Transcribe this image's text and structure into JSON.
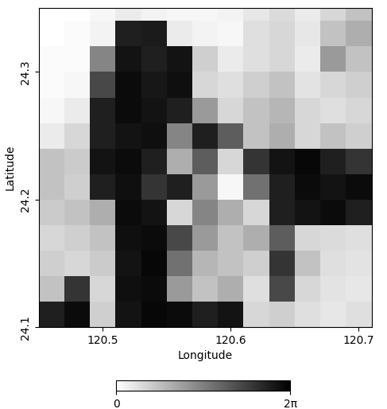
{
  "chart_data": {
    "type": "heatmap",
    "xlabel": "Longitude",
    "ylabel": "Latitude",
    "xlim": [
      120.45,
      120.71
    ],
    "ylim": [
      24.1,
      24.35
    ],
    "xticks": [
      120.5,
      120.6,
      120.7
    ],
    "yticks": [
      24.1,
      24.2,
      24.3
    ],
    "x": [
      120.45,
      120.47,
      120.49,
      120.51,
      120.53,
      120.55,
      120.57,
      120.59,
      120.61,
      120.63,
      120.65,
      120.67,
      120.69,
      120.71
    ],
    "y": [
      24.1,
      24.12,
      24.14,
      24.16,
      24.18,
      24.2,
      24.22,
      24.24,
      24.26,
      24.28,
      24.3,
      24.32,
      24.34,
      24.36
    ],
    "z": [
      [
        5.5,
        6.0,
        1.2,
        5.8,
        6.1,
        6.0,
        5.5,
        5.8,
        1.0,
        1.2,
        0.8,
        0.6,
        0.8
      ],
      [
        1.5,
        5.0,
        1.0,
        5.9,
        6.0,
        2.5,
        1.5,
        2.0,
        0.8,
        4.5,
        1.0,
        0.7,
        0.6
      ],
      [
        1.2,
        1.0,
        1.3,
        5.8,
        6.1,
        3.5,
        1.8,
        1.5,
        1.2,
        5.0,
        1.5,
        0.8,
        0.7
      ],
      [
        1.0,
        1.2,
        1.5,
        5.9,
        6.0,
        4.5,
        2.5,
        1.5,
        2.0,
        4.0,
        1.0,
        0.9,
        0.8
      ],
      [
        1.3,
        1.5,
        2.0,
        6.0,
        5.8,
        1.0,
        3.0,
        2.0,
        1.0,
        5.5,
        5.8,
        6.0,
        5.5
      ],
      [
        1.5,
        1.2,
        5.5,
        5.9,
        5.0,
        5.5,
        2.5,
        0.2,
        3.5,
        5.5,
        6.0,
        5.8,
        6.0
      ],
      [
        1.5,
        1.3,
        5.8,
        6.0,
        5.5,
        2.0,
        4.0,
        1.0,
        5.0,
        5.8,
        6.1,
        5.5,
        5.0
      ],
      [
        0.5,
        1.0,
        5.5,
        5.8,
        5.9,
        3.0,
        5.5,
        4.0,
        1.5,
        2.0,
        1.0,
        1.5,
        1.2
      ],
      [
        0.2,
        0.5,
        5.5,
        6.0,
        5.8,
        5.5,
        2.5,
        1.0,
        1.5,
        1.8,
        1.0,
        0.8,
        1.0
      ],
      [
        0.1,
        0.2,
        4.5,
        6.0,
        5.7,
        5.9,
        1.0,
        0.8,
        1.2,
        1.5,
        0.7,
        1.0,
        1.2
      ],
      [
        0.1,
        0.1,
        3.0,
        5.8,
        5.5,
        5.8,
        1.2,
        0.5,
        0.8,
        1.0,
        0.5,
        2.5,
        1.5
      ],
      [
        0.0,
        0.1,
        0.3,
        5.5,
        5.6,
        0.5,
        0.3,
        0.2,
        0.8,
        1.0,
        0.6,
        1.5,
        2.0
      ],
      [
        0.0,
        0.0,
        0.2,
        0.5,
        0.3,
        0.2,
        0.2,
        0.3,
        0.6,
        0.9,
        0.5,
        1.0,
        1.5
      ]
    ],
    "colorbar": {
      "range": [
        0,
        6.283
      ],
      "ticks": [
        {
          "value": 0,
          "label": "0"
        },
        {
          "value": 6.283,
          "label": "2π"
        }
      ]
    }
  }
}
